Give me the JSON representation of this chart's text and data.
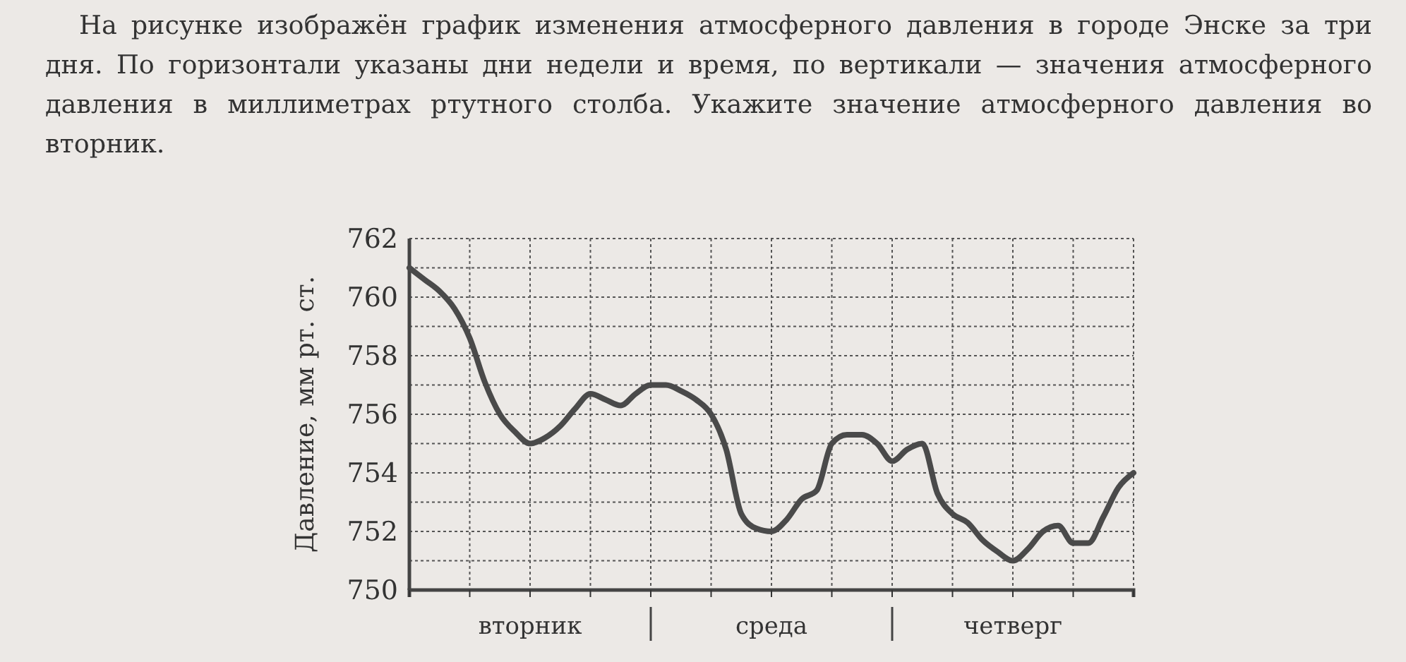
{
  "chart_data": {
    "type": "line",
    "title": "На рисунке изображён график изменения атмосферного давления в городе Энске за три дня. По горизонтали указаны дни недели и время, по вертикали — значения атмосферного давления в миллиметрах ртутного столба. Укажите значение атмосферного давления во вторник.",
    "ylabel": "Давление, мм рт. ст.",
    "categories": [
      null,
      null,
      null,
      null,
      null,
      null,
      null,
      null,
      "вторник",
      null,
      null,
      null,
      null,
      null,
      null,
      null,
      null,
      null,
      null,
      null,
      null,
      null,
      null,
      null,
      "среда",
      null,
      null,
      null,
      null,
      null,
      null,
      null,
      null,
      null,
      null,
      null,
      null,
      null,
      null,
      null,
      "четверг",
      null,
      null,
      null,
      null,
      null,
      null,
      null,
      null
    ],
    "series": [
      {
        "color": "#4a4a4a",
        "values": [
          761.0,
          760.6,
          760.2,
          759.6,
          758.6,
          757.1,
          756.0,
          755.4,
          755.0,
          755.2,
          755.6,
          756.2,
          756.7,
          756.5,
          756.3,
          756.7,
          757.0,
          757.0,
          756.8,
          756.5,
          756.0,
          754.8,
          752.6,
          752.1,
          752.0,
          752.4,
          753.1,
          753.4,
          755.0,
          755.3,
          755.3,
          755.0,
          754.4,
          754.8,
          755.0,
          753.3,
          752.6,
          752.3,
          751.7,
          751.3,
          751.0,
          751.4,
          752.0,
          752.2,
          751.6,
          751.6,
          752.5,
          753.5,
          754.0
        ]
      }
    ],
    "ylim": [
      750,
      762
    ],
    "yticks": [
      750,
      {
        "value": 751,
        "label": null
      },
      752,
      {
        "value": 753,
        "label": null
      },
      754,
      {
        "value": 755,
        "label": null
      },
      756,
      {
        "value": 757,
        "label": null
      },
      758,
      {
        "value": 759,
        "label": null
      },
      760,
      {
        "value": 761,
        "label": null
      },
      762
    ],
    "grid": true,
    "marker": "none",
    "line_style": "solid"
  }
}
